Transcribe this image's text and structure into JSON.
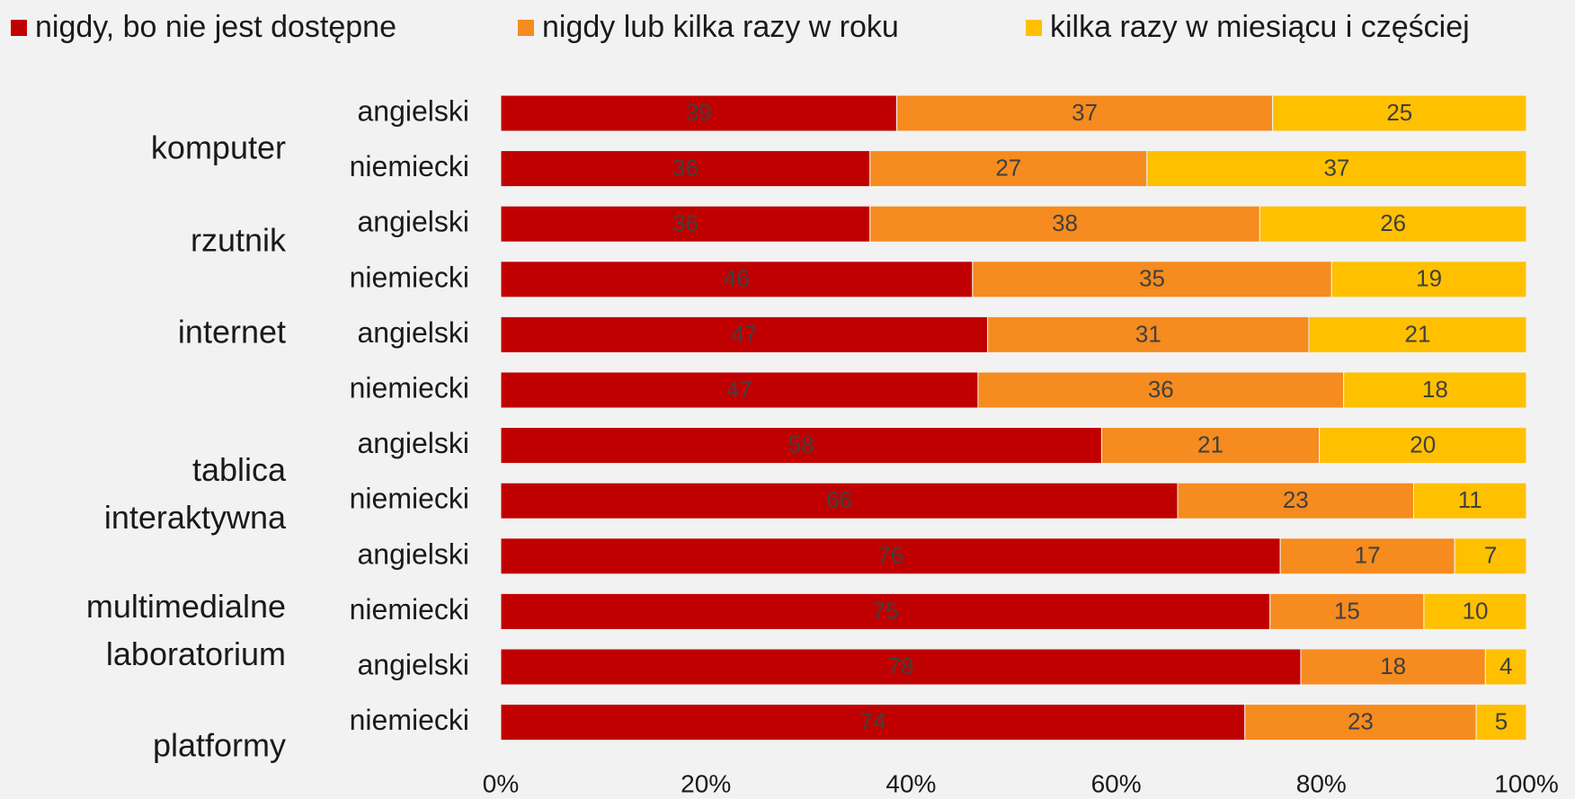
{
  "chart_data": {
    "type": "bar",
    "orientation": "horizontal",
    "stack": "percent",
    "categories": [
      "angielski",
      "niemiecki",
      "angielski",
      "niemiecki",
      "angielski",
      "niemiecki",
      "angielski",
      "niemiecki",
      "angielski",
      "niemiecki",
      "angielski",
      "niemiecki"
    ],
    "groups": [
      [
        "komputer"
      ],
      [
        "rzutnik"
      ],
      [
        "internet"
      ],
      [
        "tablica",
        "interaktywna"
      ],
      [
        "multimedialne",
        "laboratorium"
      ],
      [
        "platformy"
      ]
    ],
    "series": [
      {
        "name": "nigdy, bo nie jest dostępne",
        "color": "#c00000",
        "values": [
          39,
          36,
          36,
          46,
          47,
          47,
          58,
          66,
          76,
          75,
          78,
          74
        ]
      },
      {
        "name": "nigdy lub kilka razy w roku",
        "color": "#f68b1f",
        "values": [
          37,
          27,
          38,
          35,
          31,
          36,
          21,
          23,
          17,
          15,
          18,
          23
        ]
      },
      {
        "name": "kilka razy w miesiącu i częściej",
        "color": "#ffc000",
        "values": [
          25,
          37,
          26,
          19,
          21,
          18,
          20,
          11,
          7,
          10,
          4,
          5
        ]
      }
    ],
    "xlim": [
      0,
      100
    ],
    "xticks": [
      {
        "value": 0,
        "label": "0%"
      },
      {
        "value": 20,
        "label": "20%"
      },
      {
        "value": 40,
        "label": "40%"
      },
      {
        "value": 60,
        "label": "60%"
      },
      {
        "value": 80,
        "label": "80%"
      },
      {
        "value": 100,
        "label": "100%"
      }
    ],
    "legend": "top"
  }
}
